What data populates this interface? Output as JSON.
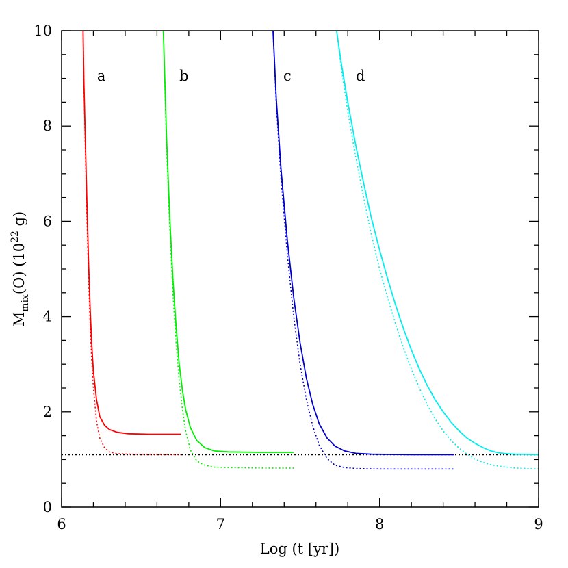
{
  "chart_data": {
    "type": "line",
    "xlabel": "Log (t [yr])",
    "ylabel": {
      "base": "M",
      "sub": "mix",
      "mid": "(O)  (10",
      "sup": "22",
      "end": " g)"
    },
    "xlim": [
      6,
      9
    ],
    "ylim": [
      0,
      10
    ],
    "xticks": [
      "6",
      "7",
      "8",
      "9"
    ],
    "yticks": [
      "0",
      "2",
      "4",
      "6",
      "8",
      "10"
    ],
    "reference_line": {
      "y": 1.1,
      "style": "dotted",
      "color": "#000000"
    },
    "series": [
      {
        "label": "a",
        "label_pos": {
          "x": 6.25,
          "y": 9.05
        },
        "color": "#ff0000",
        "solid": [
          [
            6.135,
            10
          ],
          [
            6.14,
            9.0
          ],
          [
            6.15,
            7.6
          ],
          [
            6.16,
            6.3
          ],
          [
            6.17,
            5.1
          ],
          [
            6.18,
            4.15
          ],
          [
            6.19,
            3.4
          ],
          [
            6.2,
            2.85
          ],
          [
            6.22,
            2.25
          ],
          [
            6.24,
            1.9
          ],
          [
            6.27,
            1.72
          ],
          [
            6.3,
            1.63
          ],
          [
            6.35,
            1.57
          ],
          [
            6.42,
            1.54
          ],
          [
            6.55,
            1.53
          ],
          [
            6.75,
            1.53
          ]
        ],
        "dotted": [
          [
            6.135,
            10
          ],
          [
            6.14,
            9.0
          ],
          [
            6.15,
            7.4
          ],
          [
            6.16,
            6.0
          ],
          [
            6.17,
            4.8
          ],
          [
            6.18,
            3.8
          ],
          [
            6.19,
            3.05
          ],
          [
            6.2,
            2.5
          ],
          [
            6.22,
            1.8
          ],
          [
            6.24,
            1.45
          ],
          [
            6.27,
            1.25
          ],
          [
            6.3,
            1.16
          ],
          [
            6.35,
            1.12
          ],
          [
            6.45,
            1.11
          ],
          [
            6.75,
            1.1
          ]
        ]
      },
      {
        "label": "b",
        "label_pos": {
          "x": 6.77,
          "y": 9.05
        },
        "color": "#00ee00",
        "solid": [
          [
            6.64,
            10
          ],
          [
            6.65,
            8.9
          ],
          [
            6.66,
            7.8
          ],
          [
            6.68,
            6.1
          ],
          [
            6.7,
            4.8
          ],
          [
            6.72,
            3.8
          ],
          [
            6.74,
            3.0
          ],
          [
            6.76,
            2.45
          ],
          [
            6.78,
            2.05
          ],
          [
            6.81,
            1.67
          ],
          [
            6.85,
            1.4
          ],
          [
            6.9,
            1.25
          ],
          [
            6.96,
            1.18
          ],
          [
            7.05,
            1.16
          ],
          [
            7.25,
            1.15
          ],
          [
            7.46,
            1.15
          ]
        ],
        "dotted": [
          [
            6.64,
            10
          ],
          [
            6.65,
            8.8
          ],
          [
            6.66,
            7.6
          ],
          [
            6.68,
            5.9
          ],
          [
            6.7,
            4.5
          ],
          [
            6.72,
            3.45
          ],
          [
            6.74,
            2.65
          ],
          [
            6.76,
            2.05
          ],
          [
            6.78,
            1.6
          ],
          [
            6.81,
            1.2
          ],
          [
            6.85,
            0.97
          ],
          [
            6.9,
            0.88
          ],
          [
            6.96,
            0.84
          ],
          [
            7.05,
            0.83
          ],
          [
            7.25,
            0.82
          ],
          [
            7.46,
            0.82
          ]
        ]
      },
      {
        "label": "c",
        "label_pos": {
          "x": 7.42,
          "y": 9.05
        },
        "color": "#0000cc",
        "solid": [
          [
            7.33,
            10
          ],
          [
            7.35,
            8.6
          ],
          [
            7.38,
            7.1
          ],
          [
            7.42,
            5.6
          ],
          [
            7.46,
            4.4
          ],
          [
            7.5,
            3.45
          ],
          [
            7.54,
            2.7
          ],
          [
            7.58,
            2.15
          ],
          [
            7.62,
            1.75
          ],
          [
            7.67,
            1.45
          ],
          [
            7.72,
            1.28
          ],
          [
            7.78,
            1.18
          ],
          [
            7.85,
            1.13
          ],
          [
            7.95,
            1.11
          ],
          [
            8.2,
            1.1
          ],
          [
            8.47,
            1.1
          ]
        ],
        "dotted": [
          [
            7.33,
            10
          ],
          [
            7.35,
            8.5
          ],
          [
            7.38,
            6.9
          ],
          [
            7.42,
            5.3
          ],
          [
            7.46,
            4.0
          ],
          [
            7.5,
            3.0
          ],
          [
            7.54,
            2.25
          ],
          [
            7.58,
            1.7
          ],
          [
            7.62,
            1.3
          ],
          [
            7.67,
            1.02
          ],
          [
            7.72,
            0.88
          ],
          [
            7.78,
            0.83
          ],
          [
            7.85,
            0.81
          ],
          [
            8.0,
            0.8
          ],
          [
            8.2,
            0.8
          ],
          [
            8.47,
            0.8
          ]
        ]
      },
      {
        "label": "d",
        "label_pos": {
          "x": 7.88,
          "y": 9.05
        },
        "color": "#00eeee",
        "solid": [
          [
            7.73,
            10
          ],
          [
            7.76,
            9.3
          ],
          [
            7.8,
            8.5
          ],
          [
            7.85,
            7.6
          ],
          [
            7.9,
            6.8
          ],
          [
            7.95,
            6.05
          ],
          [
            8.0,
            5.4
          ],
          [
            8.05,
            4.8
          ],
          [
            8.1,
            4.25
          ],
          [
            8.15,
            3.75
          ],
          [
            8.2,
            3.3
          ],
          [
            8.25,
            2.9
          ],
          [
            8.3,
            2.55
          ],
          [
            8.35,
            2.25
          ],
          [
            8.4,
            2.0
          ],
          [
            8.45,
            1.78
          ],
          [
            8.5,
            1.6
          ],
          [
            8.55,
            1.45
          ],
          [
            8.6,
            1.34
          ],
          [
            8.65,
            1.25
          ],
          [
            8.7,
            1.18
          ],
          [
            8.75,
            1.14
          ],
          [
            8.8,
            1.12
          ],
          [
            8.85,
            1.11
          ],
          [
            9.0,
            1.1
          ]
        ],
        "dotted": [
          [
            7.73,
            10
          ],
          [
            7.76,
            9.2
          ],
          [
            7.8,
            8.3
          ],
          [
            7.85,
            7.35
          ],
          [
            7.9,
            6.5
          ],
          [
            7.95,
            5.7
          ],
          [
            8.0,
            5.0
          ],
          [
            8.05,
            4.4
          ],
          [
            8.1,
            3.85
          ],
          [
            8.15,
            3.35
          ],
          [
            8.2,
            2.9
          ],
          [
            8.25,
            2.5
          ],
          [
            8.3,
            2.15
          ],
          [
            8.35,
            1.85
          ],
          [
            8.4,
            1.6
          ],
          [
            8.45,
            1.4
          ],
          [
            8.5,
            1.24
          ],
          [
            8.55,
            1.11
          ],
          [
            8.6,
            1.01
          ],
          [
            8.65,
            0.94
          ],
          [
            8.7,
            0.89
          ],
          [
            8.75,
            0.86
          ],
          [
            8.8,
            0.84
          ],
          [
            8.85,
            0.82
          ],
          [
            9.0,
            0.8
          ]
        ]
      }
    ]
  }
}
